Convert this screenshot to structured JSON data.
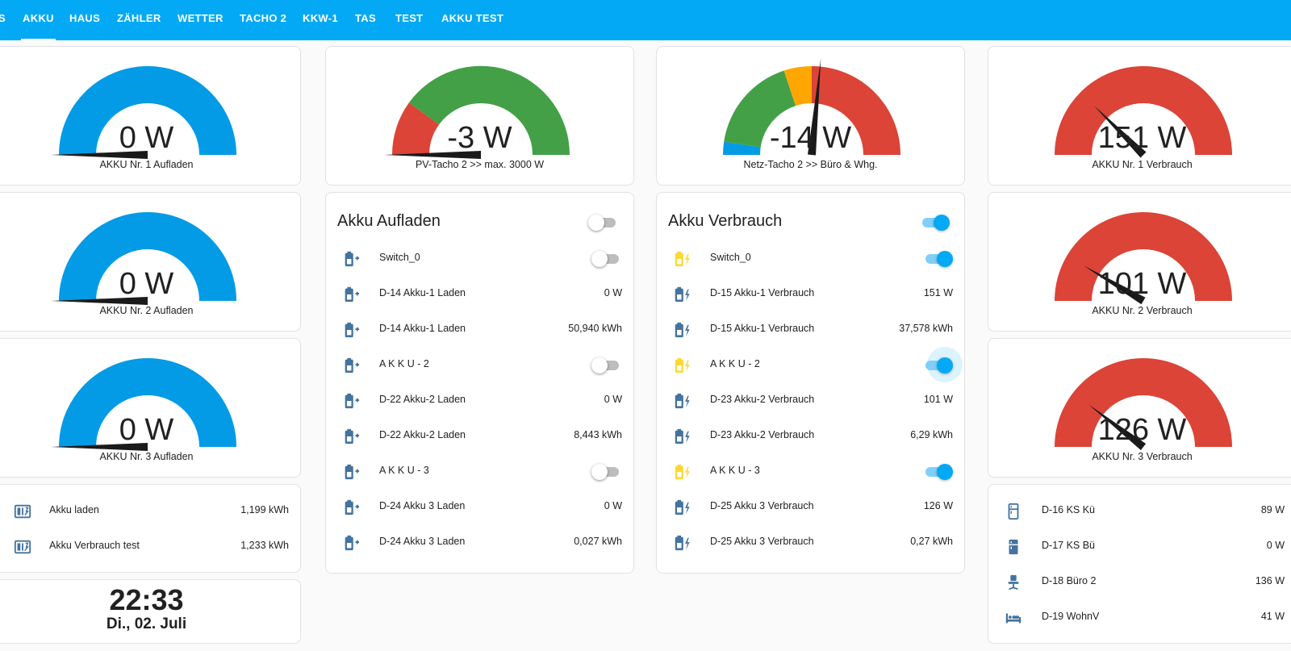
{
  "tabs": [
    {
      "label": "AKKU",
      "active": true
    },
    {
      "label": "HAUS"
    },
    {
      "label": "ZÄHLER"
    },
    {
      "label": "WETTER"
    },
    {
      "label": "TACHO 2"
    },
    {
      "label": "KKW-1"
    },
    {
      "label": "TAS"
    },
    {
      "label": "TEST"
    },
    {
      "label": "AKKU TEST"
    }
  ],
  "gauges": {
    "akku1_laden": {
      "value": "0 W",
      "label": "AKKU Nr. 1 Aufladen",
      "needle": 0
    },
    "akku2_laden": {
      "value": "0 W",
      "label": "AKKU Nr. 2 Aufladen",
      "needle": 0
    },
    "akku3_laden": {
      "value": "0 W",
      "label": "AKKU Nr. 3 Aufladen",
      "needle": 0
    },
    "pv_tacho": {
      "value": "-3 W",
      "label": "PV-Tacho 2 >> max. 3000 W",
      "needle": 0
    },
    "netz_tacho": {
      "value": "-14 W",
      "label": "Netz-Tacho 2 >> Büro & Whg.",
      "needle": 0.53
    },
    "akku1_verbrauch": {
      "value": "151 W",
      "label": "AKKU Nr. 1 Verbrauch",
      "needle": 0.25
    },
    "akku2_verbrauch": {
      "value": "101 W",
      "label": "AKKU Nr. 2 Verbrauch",
      "needle": 0.17
    },
    "akku3_verbrauch": {
      "value": "126 W",
      "label": "AKKU Nr. 3 Verbrauch",
      "needle": 0.21
    }
  },
  "energy_card": {
    "rows": [
      {
        "name": "Akku laden",
        "state": "1,199 kWh",
        "icon": "meter-icon"
      },
      {
        "name": "Akku Verbrauch test",
        "state": "1,233 kWh",
        "icon": "meter-icon"
      }
    ]
  },
  "clock": {
    "time": "22:33",
    "date": "Di., 02. Juli"
  },
  "akku_aufladen": {
    "title": "Akku Aufladen",
    "header_toggle": false,
    "rows": [
      {
        "name": "Switch_0",
        "toggle": false,
        "icon": "battery-charging-icon"
      },
      {
        "name": "D-14 Akku-1 Laden",
        "state": "0 W",
        "icon": "battery-charging-icon"
      },
      {
        "name": "D-14 Akku-1 Laden",
        "state": "50,940 kWh",
        "icon": "battery-charging-icon"
      },
      {
        "name": "A K K U - 2",
        "toggle": false,
        "icon": "battery-charging-icon"
      },
      {
        "name": "D-22 Akku-2 Laden",
        "state": "0 W",
        "icon": "battery-charging-icon"
      },
      {
        "name": "D-22 Akku-2 Laden",
        "state": "8,443 kWh",
        "icon": "battery-charging-icon"
      },
      {
        "name": "A K K U - 3",
        "toggle": false,
        "icon": "battery-charging-icon"
      },
      {
        "name": "D-24 Akku 3 Laden",
        "state": "0 W",
        "icon": "battery-charging-icon"
      },
      {
        "name": "D-24 Akku 3 Laden",
        "state": "0,027 kWh",
        "icon": "battery-charging-icon"
      }
    ]
  },
  "akku_verbrauch": {
    "title": "Akku Verbrauch",
    "header_toggle": true,
    "rows": [
      {
        "name": "Switch_0",
        "toggle": true,
        "icon": "battery-bolt-icon"
      },
      {
        "name": "D-15 Akku-1 Verbrauch",
        "state": "151 W",
        "icon": "battery-bolt-icon"
      },
      {
        "name": "D-15 Akku-1 Verbrauch",
        "state": "37,578 kWh",
        "icon": "battery-bolt-icon"
      },
      {
        "name": "A K K U - 2",
        "toggle": true,
        "icon": "battery-bolt-icon"
      },
      {
        "name": "D-23 Akku-2 Verbrauch",
        "state": "101 W",
        "icon": "battery-bolt-icon"
      },
      {
        "name": "D-23 Akku-2 Verbrauch",
        "state": "6,29 kWh",
        "icon": "battery-bolt-icon"
      },
      {
        "name": "A K K U - 3",
        "toggle": true,
        "icon": "battery-bolt-icon"
      },
      {
        "name": "D-25 Akku 3 Verbrauch",
        "state": "126 W",
        "icon": "battery-bolt-icon"
      },
      {
        "name": "D-25 Akku 3 Verbrauch",
        "state": "0,27 kWh",
        "icon": "battery-bolt-icon"
      }
    ]
  },
  "devices": {
    "rows": [
      {
        "name": "D-16 KS Kü",
        "state": "89 W",
        "icon": "fridge-icon"
      },
      {
        "name": "D-17 KS Bü",
        "state": "0 W",
        "icon": "fridge-icon"
      },
      {
        "name": "D-18 Büro 2",
        "state": "136 W",
        "icon": "office-chair-icon"
      },
      {
        "name": "D-19 WohnV",
        "state": "41 W",
        "icon": "bed-icon"
      }
    ]
  },
  "colors": {
    "header": "#03a9f4",
    "blue": "#039be5",
    "green": "#43a047",
    "red": "#db4437",
    "orange": "#ffa600",
    "icon_blue": "#44739e",
    "icon_yellow": "#fdd835"
  }
}
